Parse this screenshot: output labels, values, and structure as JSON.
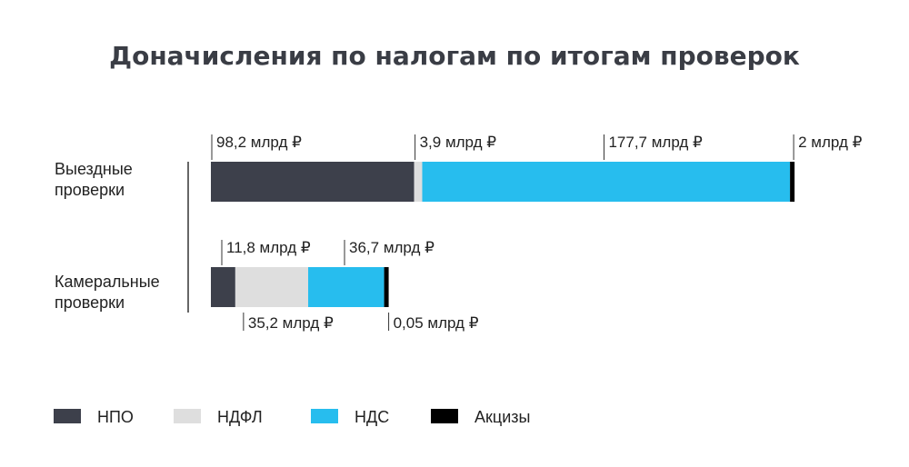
{
  "chart_data": {
    "type": "bar",
    "orientation": "horizontal",
    "stacked": true,
    "title": "Доначисления по налогам по итогам проверок",
    "categories": [
      [
        "Выездные",
        "проверки"
      ],
      [
        "Камеральные",
        "проверки"
      ]
    ],
    "series": [
      {
        "name": "НПО",
        "color": "#3d404b",
        "values": [
          98.2,
          11.8
        ],
        "labels": [
          "98,2 млрд ₽",
          "11,8 млрд ₽"
        ]
      },
      {
        "name": "НДФЛ",
        "color": "#dedede",
        "values": [
          3.9,
          35.2
        ],
        "labels": [
          "3,9 млрд ₽",
          "35,2 млрд ₽"
        ]
      },
      {
        "name": "НДС",
        "color": "#27bdee",
        "values": [
          177.7,
          36.7
        ],
        "labels": [
          "177,7 млрд ₽",
          "36,7 млрд ₽"
        ]
      },
      {
        "name": "Акцизы",
        "color": "#000000",
        "values": [
          2,
          0.05
        ],
        "labels": [
          "2 млрд ₽",
          "0,05 млрд ₽"
        ]
      }
    ],
    "legend": "bottom"
  }
}
